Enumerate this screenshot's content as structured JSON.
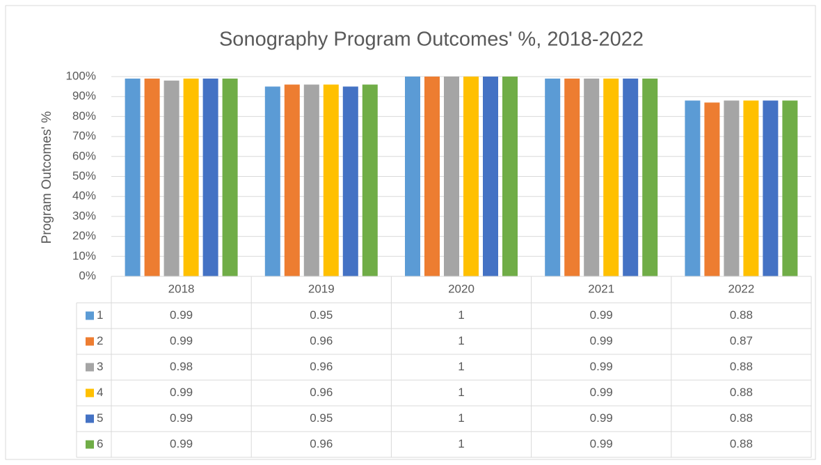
{
  "chart_data": {
    "type": "bar",
    "title": "Sonography Program Outcomes' %, 2018-2022",
    "y_label": "Program Outcomes' %",
    "categories": [
      "2018",
      "2019",
      "2020",
      "2021",
      "2022"
    ],
    "series": [
      {
        "name": "1",
        "color": "#5b9bd5",
        "values": [
          0.99,
          0.95,
          1,
          0.99,
          0.88
        ]
      },
      {
        "name": "2",
        "color": "#ed7d31",
        "values": [
          0.99,
          0.96,
          1,
          0.99,
          0.87
        ]
      },
      {
        "name": "3",
        "color": "#a5a5a5",
        "values": [
          0.98,
          0.96,
          1,
          0.99,
          0.88
        ]
      },
      {
        "name": "4",
        "color": "#ffc000",
        "values": [
          0.99,
          0.96,
          1,
          0.99,
          0.88
        ]
      },
      {
        "name": "5",
        "color": "#4472c4",
        "values": [
          0.99,
          0.95,
          1,
          0.99,
          0.88
        ]
      },
      {
        "name": "6",
        "color": "#70ad47",
        "values": [
          0.99,
          0.96,
          1,
          0.99,
          0.88
        ]
      }
    ],
    "ylim": [
      0,
      1
    ],
    "yticks": [
      {
        "value": 0,
        "label": "0%"
      },
      {
        "value": 0.1,
        "label": "10%"
      },
      {
        "value": 0.2,
        "label": "20%"
      },
      {
        "value": 0.3,
        "label": "30%"
      },
      {
        "value": 0.4,
        "label": "40%"
      },
      {
        "value": 0.5,
        "label": "50%"
      },
      {
        "value": 0.6,
        "label": "60%"
      },
      {
        "value": 0.7,
        "label": "70%"
      },
      {
        "value": 0.8,
        "label": "80%"
      },
      {
        "value": 0.9,
        "label": "90%"
      },
      {
        "value": 1,
        "label": "100%"
      }
    ],
    "grid": true
  }
}
